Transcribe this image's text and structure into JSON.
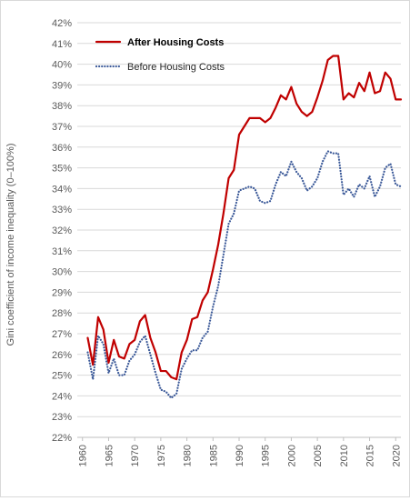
{
  "chart_data": {
    "type": "line",
    "title": "",
    "xlabel": "",
    "ylabel": "Gini coefficient of income inequality (0–100%)",
    "xlim": [
      1959,
      2021
    ],
    "ylim": [
      22,
      42
    ],
    "x_ticks": [
      1960,
      1965,
      1970,
      1975,
      1980,
      1985,
      1990,
      1995,
      2000,
      2005,
      2010,
      2015,
      2020
    ],
    "y_ticks": [
      22,
      23,
      24,
      25,
      26,
      27,
      28,
      29,
      30,
      31,
      32,
      33,
      34,
      35,
      36,
      37,
      38,
      39,
      40,
      41,
      42
    ],
    "tick_suffix": "%",
    "grid": true,
    "legend_position": "top-left",
    "series": [
      {
        "name": "After Housing Costs",
        "style": "solid",
        "color": "#c00000",
        "x": [
          1961,
          1962,
          1963,
          1964,
          1965,
          1966,
          1967,
          1968,
          1969,
          1970,
          1971,
          1972,
          1973,
          1974,
          1975,
          1976,
          1977,
          1978,
          1979,
          1980,
          1981,
          1982,
          1983,
          1984,
          1985,
          1986,
          1987,
          1988,
          1989,
          1990,
          1991,
          1992,
          1993,
          1994,
          1995,
          1996,
          1997,
          1998,
          1999,
          2000,
          2001,
          2002,
          2003,
          2004,
          2005,
          2006,
          2007,
          2008,
          2009,
          2010,
          2011,
          2012,
          2013,
          2014,
          2015,
          2016,
          2017,
          2018,
          2019,
          2020,
          2021
        ],
        "y": [
          26.8,
          25.5,
          27.8,
          27.2,
          25.6,
          26.7,
          25.9,
          25.8,
          26.5,
          26.7,
          27.6,
          27.9,
          26.8,
          26.1,
          25.2,
          25.2,
          24.9,
          24.8,
          26.1,
          26.7,
          27.7,
          27.8,
          28.6,
          29.0,
          30.1,
          31.3,
          32.8,
          34.5,
          34.9,
          36.6,
          37.0,
          37.4,
          37.4,
          37.4,
          37.2,
          37.4,
          37.9,
          38.5,
          38.3,
          38.9,
          38.1,
          37.7,
          37.5,
          37.7,
          38.4,
          39.2,
          40.2,
          40.4,
          40.4,
          38.3,
          38.6,
          38.4,
          39.1,
          38.7,
          39.6,
          38.6,
          38.7,
          39.6,
          39.3,
          38.3,
          38.3
        ]
      },
      {
        "name": "Before Housing Costs",
        "style": "dotted",
        "color": "#3c5a99",
        "x": [
          1961,
          1962,
          1963,
          1964,
          1965,
          1966,
          1967,
          1968,
          1969,
          1970,
          1971,
          1972,
          1973,
          1974,
          1975,
          1976,
          1977,
          1978,
          1979,
          1980,
          1981,
          1982,
          1983,
          1984,
          1985,
          1986,
          1987,
          1988,
          1989,
          1990,
          1991,
          1992,
          1993,
          1994,
          1995,
          1996,
          1997,
          1998,
          1999,
          2000,
          2001,
          2002,
          2003,
          2004,
          2005,
          2006,
          2007,
          2008,
          2009,
          2010,
          2011,
          2012,
          2013,
          2014,
          2015,
          2016,
          2017,
          2018,
          2019,
          2020,
          2021
        ],
        "y": [
          26.1,
          24.8,
          26.9,
          26.5,
          25.1,
          25.8,
          25.0,
          25.0,
          25.7,
          26.0,
          26.6,
          26.9,
          26.0,
          25.1,
          24.3,
          24.2,
          23.9,
          24.1,
          25.3,
          25.8,
          26.2,
          26.2,
          26.8,
          27.1,
          28.3,
          29.3,
          30.8,
          32.3,
          32.8,
          33.9,
          34.0,
          34.1,
          34.0,
          33.4,
          33.3,
          33.4,
          34.2,
          34.8,
          34.6,
          35.3,
          34.8,
          34.5,
          33.9,
          34.1,
          34.5,
          35.3,
          35.8,
          35.7,
          35.7,
          33.7,
          34.0,
          33.6,
          34.2,
          34.0,
          34.6,
          33.6,
          34.1,
          35.0,
          35.2,
          34.2,
          34.1
        ]
      }
    ]
  }
}
